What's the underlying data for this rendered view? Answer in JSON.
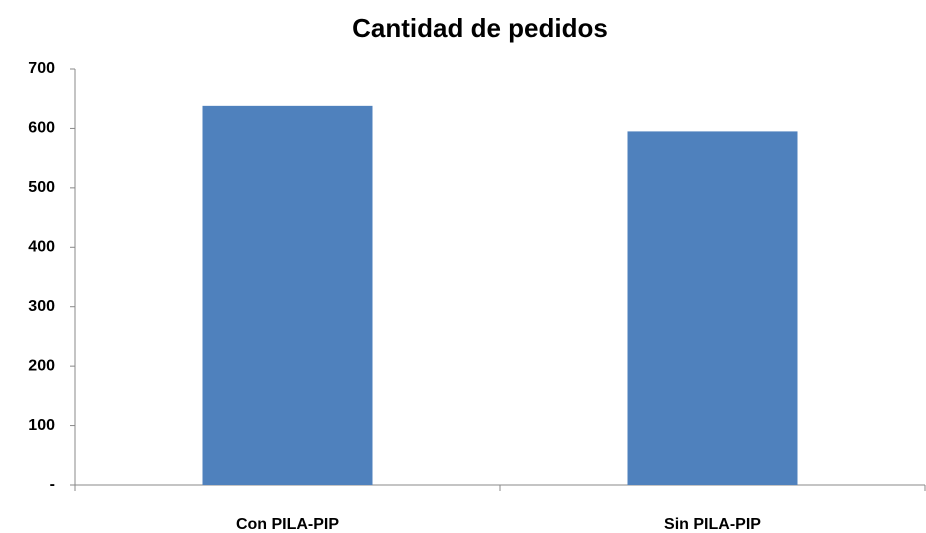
{
  "chart_data": {
    "type": "bar",
    "title": "Cantidad de pedidos",
    "categories": [
      "Con PILA-PIP",
      "Sin PILA-PIP"
    ],
    "values": [
      638,
      595
    ],
    "color": "#4f81bd",
    "ylim": [
      0,
      700
    ],
    "yticks": [
      {
        "value": 0,
        "label": "-"
      },
      100,
      200,
      300,
      400,
      500,
      600,
      700
    ],
    "grid": false
  }
}
